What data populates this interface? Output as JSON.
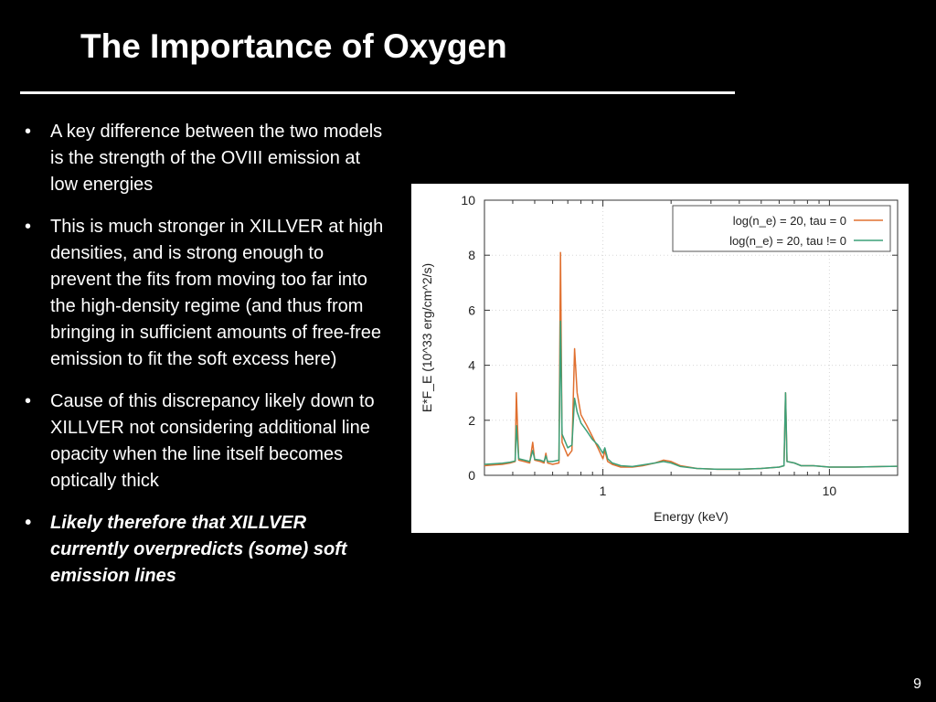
{
  "slide": {
    "title": "The Importance of Oxygen",
    "page_number": "9",
    "bullets": [
      {
        "text": "A key difference between the two models is the strength of the OVIII emission at low energies",
        "emphasis": false
      },
      {
        "text": "This is much stronger in XILLVER at high densities, and is strong enough to prevent the fits from moving too far into the high-density regime (and thus from bringing in sufficient amounts of free-free emission to fit the soft excess here)",
        "emphasis": false
      },
      {
        "text": "Cause of this discrepancy likely down to XILLVER not considering additional line opacity when the line itself becomes optically thick",
        "emphasis": false
      },
      {
        "text": "Likely therefore that XILLVER currently overpredicts (some) soft emission lines",
        "emphasis": true
      }
    ],
    "bullet_glyph": "•"
  },
  "chart_data": {
    "type": "line",
    "xlabel": "Energy (keV)",
    "ylabel": "E*F_E (10^33 erg/cm^2/s)",
    "x_scale": "log",
    "xlim": [
      0.3,
      20
    ],
    "ylim": [
      0,
      10
    ],
    "x_ticks": [
      1,
      10
    ],
    "y_ticks": [
      0,
      2,
      4,
      6,
      8,
      10
    ],
    "grid": "dotted",
    "legend_position": "top-right",
    "series": [
      {
        "name": "log(n_e) = 20, tau = 0",
        "color": "#e07030",
        "points": [
          [
            0.3,
            0.35
          ],
          [
            0.33,
            0.38
          ],
          [
            0.36,
            0.4
          ],
          [
            0.39,
            0.45
          ],
          [
            0.41,
            0.5
          ],
          [
            0.415,
            3.0
          ],
          [
            0.425,
            0.55
          ],
          [
            0.45,
            0.5
          ],
          [
            0.475,
            0.45
          ],
          [
            0.49,
            1.2
          ],
          [
            0.5,
            0.55
          ],
          [
            0.53,
            0.5
          ],
          [
            0.55,
            0.45
          ],
          [
            0.56,
            0.8
          ],
          [
            0.57,
            0.45
          ],
          [
            0.6,
            0.4
          ],
          [
            0.64,
            0.45
          ],
          [
            0.65,
            8.1
          ],
          [
            0.66,
            1.2
          ],
          [
            0.7,
            0.7
          ],
          [
            0.73,
            0.9
          ],
          [
            0.75,
            4.6
          ],
          [
            0.77,
            3.0
          ],
          [
            0.8,
            2.2
          ],
          [
            0.85,
            1.8
          ],
          [
            0.9,
            1.4
          ],
          [
            0.95,
            1.0
          ],
          [
            1.0,
            0.6
          ],
          [
            1.02,
            0.9
          ],
          [
            1.05,
            0.5
          ],
          [
            1.1,
            0.4
          ],
          [
            1.2,
            0.3
          ],
          [
            1.35,
            0.3
          ],
          [
            1.5,
            0.35
          ],
          [
            1.7,
            0.45
          ],
          [
            1.85,
            0.55
          ],
          [
            2.0,
            0.5
          ],
          [
            2.2,
            0.35
          ],
          [
            2.6,
            0.25
          ],
          [
            3.2,
            0.22
          ],
          [
            4.0,
            0.22
          ],
          [
            5.0,
            0.25
          ],
          [
            6.0,
            0.3
          ],
          [
            6.3,
            0.35
          ],
          [
            6.4,
            3.0
          ],
          [
            6.5,
            0.5
          ],
          [
            7.0,
            0.45
          ],
          [
            7.5,
            0.35
          ],
          [
            8.5,
            0.35
          ],
          [
            10,
            0.3
          ],
          [
            13,
            0.3
          ],
          [
            17,
            0.32
          ],
          [
            20,
            0.33
          ]
        ]
      },
      {
        "name": "log(n_e) = 20, tau != 0",
        "color": "#3ca078",
        "points": [
          [
            0.3,
            0.4
          ],
          [
            0.33,
            0.42
          ],
          [
            0.36,
            0.44
          ],
          [
            0.39,
            0.48
          ],
          [
            0.41,
            0.52
          ],
          [
            0.415,
            1.8
          ],
          [
            0.425,
            0.6
          ],
          [
            0.45,
            0.55
          ],
          [
            0.475,
            0.5
          ],
          [
            0.49,
            0.9
          ],
          [
            0.5,
            0.58
          ],
          [
            0.53,
            0.55
          ],
          [
            0.55,
            0.5
          ],
          [
            0.56,
            0.7
          ],
          [
            0.57,
            0.5
          ],
          [
            0.6,
            0.5
          ],
          [
            0.64,
            0.55
          ],
          [
            0.65,
            5.6
          ],
          [
            0.66,
            1.5
          ],
          [
            0.7,
            1.0
          ],
          [
            0.73,
            1.1
          ],
          [
            0.75,
            2.8
          ],
          [
            0.77,
            2.3
          ],
          [
            0.8,
            1.9
          ],
          [
            0.85,
            1.6
          ],
          [
            0.9,
            1.3
          ],
          [
            0.95,
            1.1
          ],
          [
            1.0,
            0.8
          ],
          [
            1.02,
            1.0
          ],
          [
            1.05,
            0.6
          ],
          [
            1.1,
            0.45
          ],
          [
            1.2,
            0.35
          ],
          [
            1.35,
            0.32
          ],
          [
            1.5,
            0.38
          ],
          [
            1.7,
            0.45
          ],
          [
            1.85,
            0.5
          ],
          [
            2.0,
            0.45
          ],
          [
            2.2,
            0.32
          ],
          [
            2.6,
            0.25
          ],
          [
            3.2,
            0.22
          ],
          [
            4.0,
            0.22
          ],
          [
            5.0,
            0.25
          ],
          [
            6.0,
            0.3
          ],
          [
            6.3,
            0.35
          ],
          [
            6.4,
            3.0
          ],
          [
            6.5,
            0.5
          ],
          [
            7.0,
            0.45
          ],
          [
            7.5,
            0.35
          ],
          [
            8.5,
            0.35
          ],
          [
            10,
            0.3
          ],
          [
            13,
            0.3
          ],
          [
            17,
            0.32
          ],
          [
            20,
            0.33
          ]
        ]
      }
    ]
  }
}
